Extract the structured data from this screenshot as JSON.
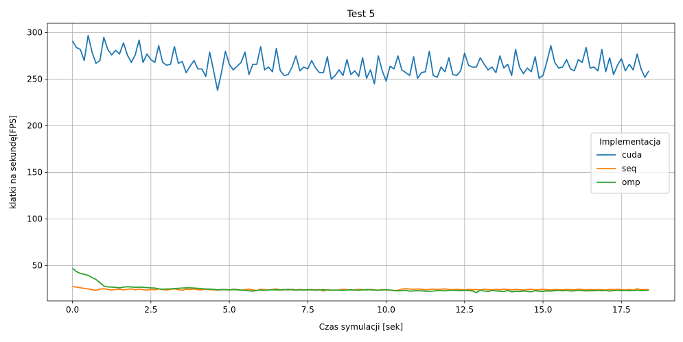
{
  "chart_data": {
    "type": "line",
    "title": "Test 5",
    "xlabel": "Czas symulacji [sek]",
    "ylabel": "klatki na sekundę[FPS]",
    "xlim": [
      -0.8,
      19.2
    ],
    "ylim": [
      12,
      310
    ],
    "xticks": [
      0.0,
      2.5,
      5.0,
      7.5,
      10.0,
      12.5,
      15.0,
      17.5
    ],
    "xtick_labels": [
      "0.0",
      "2.5",
      "5.0",
      "7.5",
      "10.0",
      "12.5",
      "15.0",
      "17.5"
    ],
    "yticks": [
      50,
      100,
      150,
      200,
      250,
      300
    ],
    "ytick_labels": [
      "50",
      "100",
      "150",
      "200",
      "250",
      "300"
    ],
    "grid": true,
    "legend": {
      "title": "Implementacja",
      "placement": "center-right"
    },
    "series": [
      {
        "name": "cuda",
        "color": "#1f77b4",
        "x": [
          0.0,
          0.125,
          0.25,
          0.375,
          0.5,
          0.625,
          0.75,
          0.875,
          1.0,
          1.125,
          1.25,
          1.375,
          1.5,
          1.625,
          1.75,
          1.875,
          2.0,
          2.125,
          2.25,
          2.375,
          2.5,
          2.625,
          2.75,
          2.875,
          3.0,
          3.125,
          3.25,
          3.375,
          3.5,
          3.625,
          3.75,
          3.875,
          4.0,
          4.125,
          4.25,
          4.375,
          4.5,
          4.625,
          4.75,
          4.875,
          5.0,
          5.125,
          5.25,
          5.375,
          5.5,
          5.625,
          5.75,
          5.875,
          6.0,
          6.125,
          6.25,
          6.375,
          6.5,
          6.625,
          6.75,
          6.875,
          7.0,
          7.125,
          7.25,
          7.375,
          7.5,
          7.625,
          7.75,
          7.875,
          8.0,
          8.125,
          8.25,
          8.375,
          8.5,
          8.625,
          8.75,
          8.875,
          9.0,
          9.125,
          9.25,
          9.375,
          9.5,
          9.625,
          9.75,
          9.875,
          10.0,
          10.125,
          10.25,
          10.375,
          10.5,
          10.625,
          10.75,
          10.875,
          11.0,
          11.125,
          11.25,
          11.375,
          11.5,
          11.625,
          11.75,
          11.875,
          12.0,
          12.125,
          12.25,
          12.375,
          12.5,
          12.625,
          12.75,
          12.875,
          13.0,
          13.125,
          13.25,
          13.375,
          13.5,
          13.625,
          13.75,
          13.875,
          14.0,
          14.125,
          14.25,
          14.375,
          14.5,
          14.625,
          14.75,
          14.875,
          15.0,
          15.125,
          15.25,
          15.375,
          15.5,
          15.625,
          15.75,
          15.875,
          16.0,
          16.125,
          16.25,
          16.375,
          16.5,
          16.625,
          16.75,
          16.875,
          17.0,
          17.125,
          17.25,
          17.375,
          17.5,
          17.625,
          17.75,
          17.875,
          18.0,
          18.125,
          18.25,
          18.375
        ],
        "values": [
          291,
          284,
          282,
          270,
          297,
          279,
          267,
          270,
          295,
          282,
          276,
          281,
          277,
          289,
          276,
          268,
          276,
          292,
          268,
          277,
          271,
          268,
          286,
          268,
          265,
          266,
          285,
          267,
          269,
          257,
          264,
          270,
          261,
          261,
          253,
          279,
          259,
          238,
          257,
          280,
          266,
          260,
          264,
          268,
          279,
          255,
          266,
          266,
          285,
          260,
          263,
          258,
          283,
          259,
          254,
          255,
          263,
          275,
          259,
          263,
          261,
          270,
          262,
          257,
          257,
          274,
          250,
          254,
          260,
          254,
          271,
          255,
          259,
          253,
          273,
          251,
          260,
          245,
          275,
          259,
          248,
          264,
          261,
          275,
          260,
          257,
          254,
          274,
          251,
          257,
          258,
          280,
          254,
          252,
          263,
          258,
          273,
          255,
          254,
          259,
          278,
          265,
          263,
          263,
          273,
          266,
          260,
          263,
          257,
          275,
          262,
          266,
          254,
          282,
          263,
          256,
          262,
          258,
          274,
          251,
          254,
          269,
          286,
          268,
          262,
          263,
          271,
          261,
          259,
          271,
          268,
          284,
          262,
          263,
          259,
          282,
          258,
          273,
          255,
          265,
          272,
          259,
          266,
          260,
          277,
          261,
          252,
          259
        ]
      },
      {
        "name": "seq",
        "color": "#ff7f0e",
        "x": [
          0.0,
          0.125,
          0.25,
          0.375,
          0.5,
          0.625,
          0.75,
          0.875,
          1.0,
          1.125,
          1.25,
          1.375,
          1.5,
          1.625,
          1.75,
          1.875,
          2.0,
          2.125,
          2.25,
          2.375,
          2.5,
          2.625,
          2.75,
          2.875,
          3.0,
          3.125,
          3.25,
          3.375,
          3.5,
          3.625,
          3.75,
          3.875,
          4.0,
          4.125,
          4.25,
          4.375,
          4.5,
          4.625,
          4.75,
          4.875,
          5.0,
          5.125,
          5.25,
          5.375,
          5.5,
          5.625,
          5.75,
          5.875,
          6.0,
          6.125,
          6.25,
          6.375,
          6.5,
          6.625,
          6.75,
          6.875,
          7.0,
          7.125,
          7.25,
          7.375,
          7.5,
          7.625,
          7.75,
          7.875,
          8.0,
          8.125,
          8.25,
          8.375,
          8.5,
          8.625,
          8.75,
          8.875,
          9.0,
          9.125,
          9.25,
          9.375,
          9.5,
          9.625,
          9.75,
          9.875,
          10.0,
          10.125,
          10.25,
          10.375,
          10.5,
          10.625,
          10.75,
          10.875,
          11.0,
          11.125,
          11.25,
          11.375,
          11.5,
          11.625,
          11.75,
          11.875,
          12.0,
          12.125,
          12.25,
          12.375,
          12.5,
          12.625,
          12.75,
          12.875,
          13.0,
          13.125,
          13.25,
          13.375,
          13.5,
          13.625,
          13.75,
          13.875,
          14.0,
          14.125,
          14.25,
          14.375,
          14.5,
          14.625,
          14.75,
          14.875,
          15.0,
          15.125,
          15.25,
          15.375,
          15.5,
          15.625,
          15.75,
          15.875,
          16.0,
          16.125,
          16.25,
          16.375,
          16.5,
          16.625,
          16.75,
          16.875,
          17.0,
          17.125,
          17.25,
          17.375,
          17.5,
          17.625,
          17.75,
          17.875,
          18.0,
          18.125,
          18.25,
          18.375
        ],
        "values": [
          27.5,
          26.8,
          26.1,
          25.4,
          24.8,
          24.1,
          23.3,
          24.7,
          25.0,
          24.3,
          23.6,
          24.2,
          24.6,
          23.8,
          24.4,
          25.0,
          23.9,
          24.6,
          24.1,
          23.5,
          24.3,
          23.9,
          24.8,
          24.2,
          23.6,
          24.4,
          24.9,
          24.1,
          23.3,
          24.7,
          24.2,
          24.9,
          24.0,
          23.8,
          24.6,
          24.1,
          23.9,
          23.4,
          24.3,
          24.0,
          23.7,
          24.5,
          24.2,
          23.5,
          24.1,
          24.6,
          23.8,
          23.2,
          24.4,
          24.0,
          23.5,
          24.3,
          24.8,
          23.9,
          24.2,
          23.6,
          24.4,
          23.8,
          24.1,
          23.9,
          23.6,
          24.2,
          23.8,
          24.0,
          22.6,
          24.0,
          23.7,
          23.4,
          23.8,
          24.4,
          24.1,
          23.6,
          23.9,
          24.3,
          24.0,
          23.7,
          24.2,
          23.9,
          23.5,
          24.1,
          23.8,
          23.6,
          22.8,
          23.4,
          24.6,
          25.1,
          24.7,
          24.4,
          24.8,
          24.5,
          23.9,
          24.3,
          24.7,
          24.2,
          24.6,
          24.9,
          24.3,
          24.0,
          24.4,
          24.1,
          23.8,
          24.3,
          24.0,
          24.2,
          23.7,
          24.5,
          24.1,
          23.8,
          24.4,
          24.0,
          24.6,
          24.2,
          23.9,
          24.3,
          24.0,
          23.6,
          24.2,
          24.5,
          23.9,
          24.1,
          24.4,
          24.0,
          23.7,
          24.2,
          24.0,
          23.8,
          24.3,
          24.1,
          23.9,
          24.6,
          24.2,
          23.8,
          24.1,
          23.9,
          24.2,
          24.0,
          23.7,
          24.3,
          24.0,
          24.4,
          24.1,
          23.8,
          24.2,
          23.6,
          25.0,
          23.9,
          24.3,
          24.0
        ]
      },
      {
        "name": "omp",
        "color": "#2ca02c",
        "x": [
          0.0,
          0.125,
          0.25,
          0.375,
          0.5,
          0.625,
          0.75,
          0.875,
          1.0,
          1.125,
          1.25,
          1.375,
          1.5,
          1.625,
          1.75,
          1.875,
          2.0,
          2.125,
          2.25,
          2.375,
          2.5,
          2.625,
          2.75,
          2.875,
          3.0,
          3.125,
          3.25,
          3.375,
          3.5,
          3.625,
          3.75,
          3.875,
          4.0,
          4.125,
          4.25,
          4.375,
          4.5,
          4.625,
          4.75,
          4.875,
          5.0,
          5.125,
          5.25,
          5.375,
          5.5,
          5.625,
          5.75,
          5.875,
          6.0,
          6.125,
          6.25,
          6.375,
          6.5,
          6.625,
          6.75,
          6.875,
          7.0,
          7.125,
          7.25,
          7.375,
          7.5,
          7.625,
          7.75,
          7.875,
          8.0,
          8.125,
          8.25,
          8.375,
          8.5,
          8.625,
          8.75,
          8.875,
          9.0,
          9.125,
          9.25,
          9.375,
          9.5,
          9.625,
          9.75,
          9.875,
          10.0,
          10.125,
          10.25,
          10.375,
          10.5,
          10.625,
          10.75,
          10.875,
          11.0,
          11.125,
          11.25,
          11.375,
          11.5,
          11.625,
          11.75,
          11.875,
          12.0,
          12.125,
          12.25,
          12.375,
          12.5,
          12.625,
          12.75,
          12.875,
          13.0,
          13.125,
          13.25,
          13.375,
          13.5,
          13.625,
          13.75,
          13.875,
          14.0,
          14.125,
          14.25,
          14.375,
          14.5,
          14.625,
          14.75,
          14.875,
          15.0,
          15.125,
          15.25,
          15.375,
          15.5,
          15.625,
          15.75,
          15.875,
          16.0,
          16.125,
          16.25,
          16.375,
          16.5,
          16.625,
          16.75,
          16.875,
          17.0,
          17.125,
          17.25,
          17.375,
          17.5,
          17.625,
          17.75,
          17.875,
          18.0,
          18.125,
          18.25,
          18.375
        ],
        "values": [
          47.0,
          43.5,
          41.5,
          40.5,
          39.5,
          37.0,
          35.0,
          31.5,
          28.0,
          27.0,
          26.8,
          26.5,
          26.0,
          26.8,
          27.2,
          27.0,
          26.5,
          26.8,
          26.6,
          26.2,
          26.0,
          25.8,
          24.9,
          24.5,
          24.8,
          24.9,
          25.2,
          25.5,
          25.8,
          26.0,
          26.0,
          25.8,
          25.5,
          25.1,
          24.8,
          24.6,
          24.3,
          23.9,
          24.0,
          24.2,
          23.8,
          24.2,
          23.9,
          23.6,
          23.3,
          22.8,
          22.5,
          23.1,
          23.6,
          23.4,
          23.7,
          24.0,
          23.8,
          23.6,
          24.0,
          24.3,
          23.9,
          23.5,
          23.9,
          23.6,
          24.1,
          23.8,
          23.5,
          23.7,
          24.0,
          23.6,
          23.4,
          23.7,
          23.5,
          23.2,
          23.6,
          23.9,
          23.6,
          23.3,
          23.8,
          24.1,
          23.9,
          23.6,
          23.4,
          23.7,
          24.0,
          23.6,
          23.2,
          22.8,
          22.9,
          23.3,
          22.4,
          22.7,
          23.0,
          22.8,
          22.5,
          22.3,
          22.6,
          22.9,
          23.1,
          22.8,
          23.2,
          23.4,
          23.1,
          22.9,
          23.3,
          23.0,
          22.7,
          20.8,
          23.6,
          22.5,
          22.2,
          23.1,
          22.7,
          22.4,
          22.0,
          23.2,
          21.7,
          22.3,
          22.0,
          22.6,
          22.2,
          21.8,
          22.9,
          22.4,
          22.1,
          22.8,
          22.5,
          22.9,
          23.2,
          22.8,
          23.1,
          22.6,
          22.9,
          23.3,
          23.0,
          22.7,
          23.0,
          22.8,
          23.2,
          22.9,
          23.1,
          22.6,
          23.0,
          23.3,
          23.0,
          23.2,
          22.9,
          23.1,
          23.4,
          23.0,
          23.2,
          23.3
        ]
      }
    ]
  }
}
